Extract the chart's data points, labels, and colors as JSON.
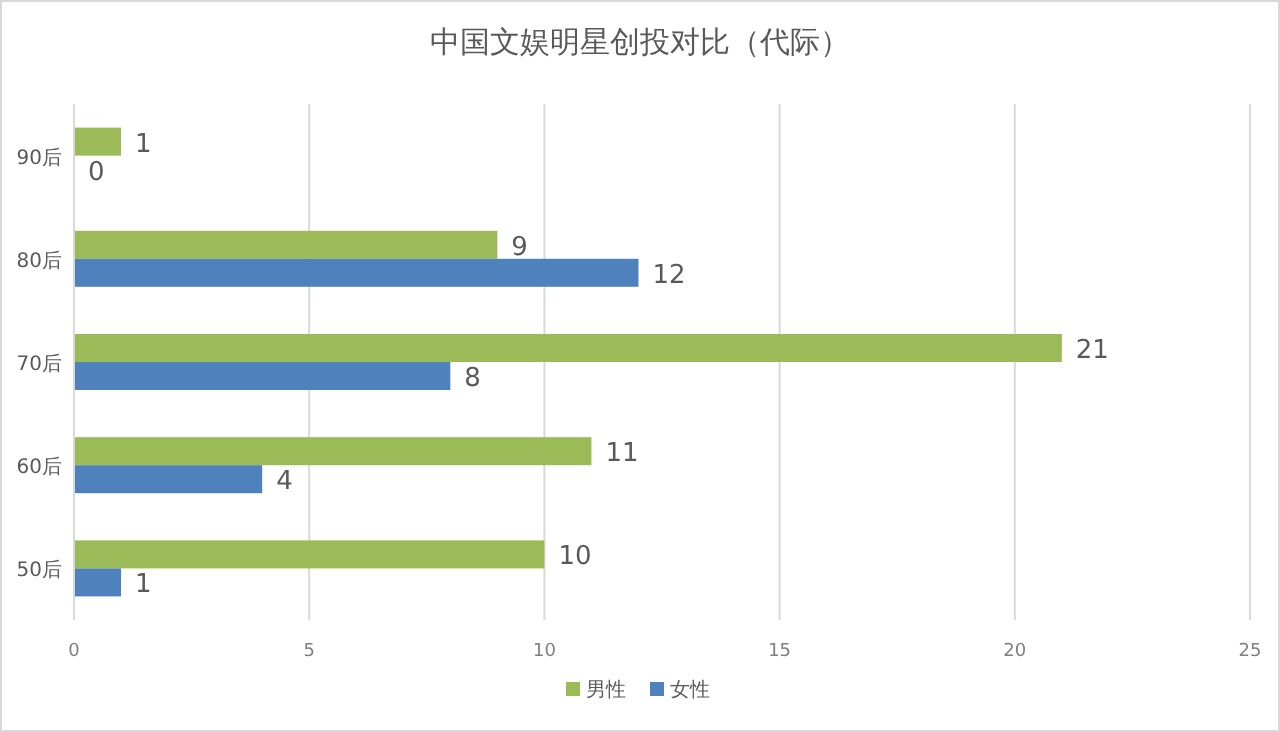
{
  "chart_data": {
    "type": "bar",
    "orientation": "horizontal",
    "title": "中国文娱明星创投对比（代际）",
    "categories": [
      "90后",
      "80后",
      "70后",
      "60后",
      "50后"
    ],
    "series": [
      {
        "name": "男性",
        "color": "#9bbb59",
        "values": [
          1,
          9,
          21,
          11,
          10
        ]
      },
      {
        "name": "女性",
        "color": "#4f81bd",
        "values": [
          0,
          12,
          8,
          4,
          1
        ]
      }
    ],
    "xlim": [
      0,
      25
    ],
    "xticks": [
      0,
      5,
      10,
      15,
      20,
      25
    ],
    "grid": "x",
    "legend": "bottom",
    "data_labels": true
  }
}
